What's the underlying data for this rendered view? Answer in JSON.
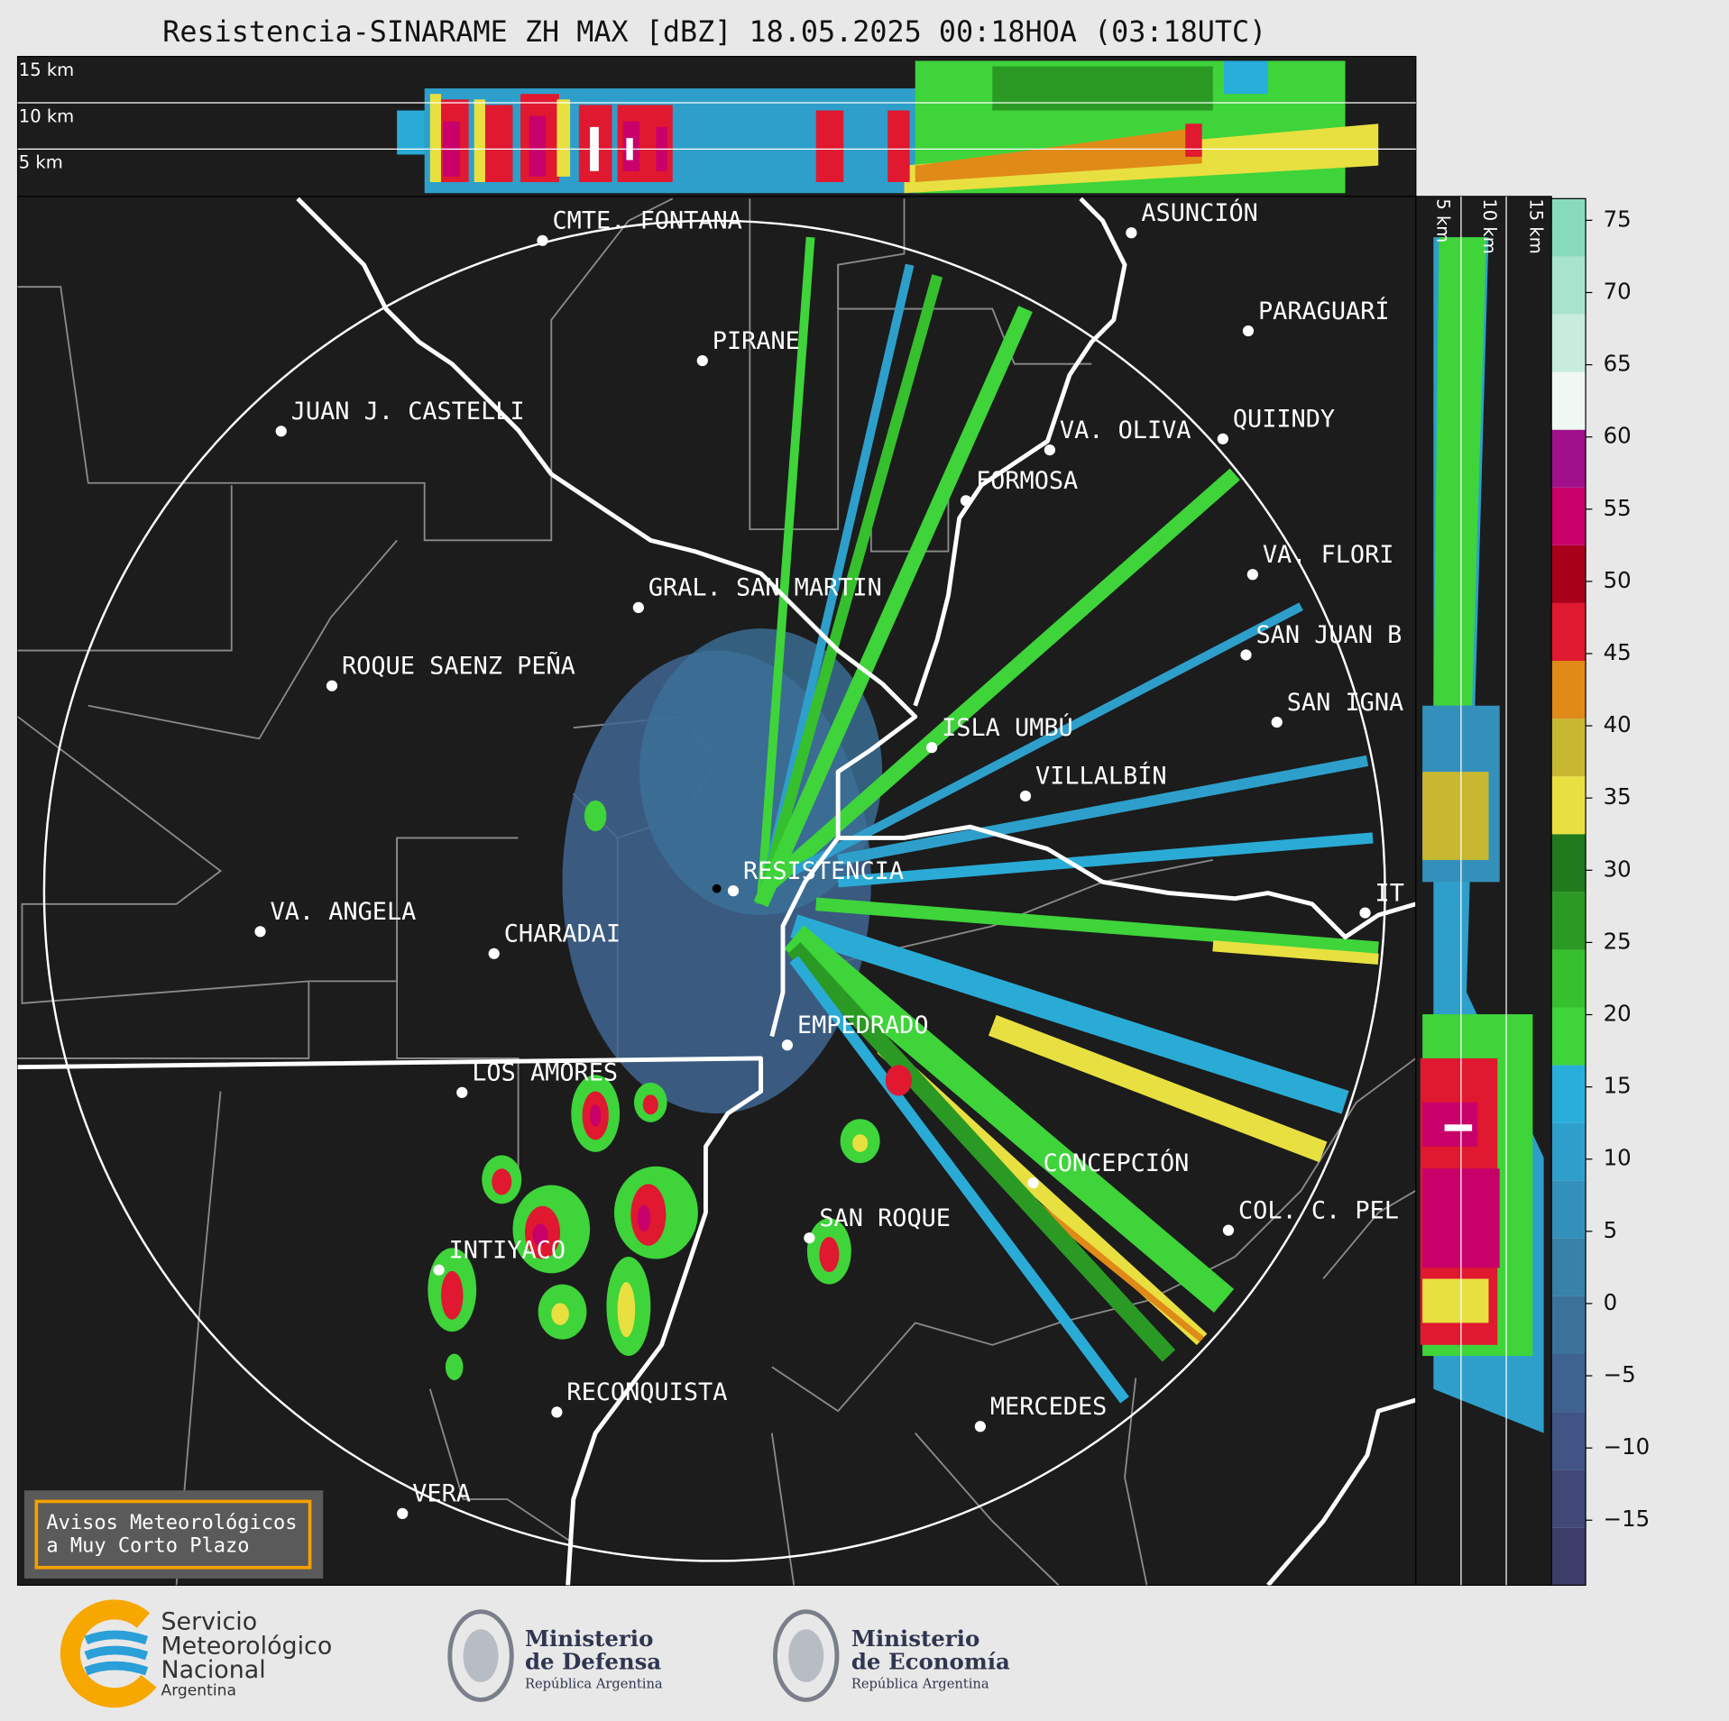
{
  "title": "Resistencia-SINARAME ZH MAX [dBZ] 18.05.2025 00:18HOA (03:18UTC)",
  "top_panel": {
    "labels": [
      "15 km",
      "10 km",
      "5 km"
    ]
  },
  "side_panel": {
    "labels": [
      "5 km",
      "10 km",
      "15 km"
    ]
  },
  "cities": [
    "CMTE. FONTANA",
    "PIRANE",
    "JUAN J. CASTELLI",
    "ASUNCIÓN",
    "PARAGUARÍ",
    "VA. OLIVA",
    "QUIINDY",
    "FORMOSA",
    "GRAL. SAN MARTIN",
    "VA. FLORI",
    "SAN JUAN B",
    "SAN IGNA",
    "ROQUE SAENZ PEÑA",
    "ISLA UMBÚ",
    "VILLALBÍN",
    "RESISTENCIA",
    "VA. ANGELA",
    "CHARADAI",
    "IT",
    "EMPEDRADO",
    "LOS AMORES",
    "CONCEPCIÓN",
    "COL. C. PEL",
    "SAN ROQUE",
    "INTIYACO",
    "RECONQUISTA",
    "MERCEDES",
    "VERA"
  ],
  "colorbar": {
    "range": [
      -19.5,
      76.5
    ],
    "ticks": [
      75,
      70,
      65,
      60,
      55,
      50,
      45,
      40,
      35,
      30,
      25,
      20,
      15,
      10,
      5,
      0,
      {
        "value": -5,
        "label": "−5"
      },
      {
        "value": -10,
        "label": "−10"
      },
      {
        "value": -15,
        "label": "−15"
      }
    ],
    "colors": [
      "#3c3e6a",
      "#3f4877",
      "#405585",
      "#3e6391",
      "#3c7199",
      "#3881a8",
      "#3390bb",
      "#2e9fcb",
      "#28aedb",
      "#3ed43a",
      "#36c02e",
      "#2a9a24",
      "#207a1c",
      "#e8e040",
      "#c8b830",
      "#e08a18",
      "#e01830",
      "#a8001a",
      "#c8006a",
      "#a0108a",
      "#f0f8f4",
      "#c8ecdc",
      "#a8e4cc",
      "#88dcbc"
    ]
  },
  "warning_box": [
    "Avisos Meteorológicos",
    "a Muy Corto Plazo"
  ],
  "logos": {
    "smn": [
      "Servicio",
      "Meteorológico",
      "Nacional",
      "Argentina"
    ],
    "defensa": [
      "Ministerio",
      "de Defensa",
      "República Argentina"
    ],
    "economia": [
      "Ministerio",
      "de Economía",
      "República Argentina"
    ]
  }
}
